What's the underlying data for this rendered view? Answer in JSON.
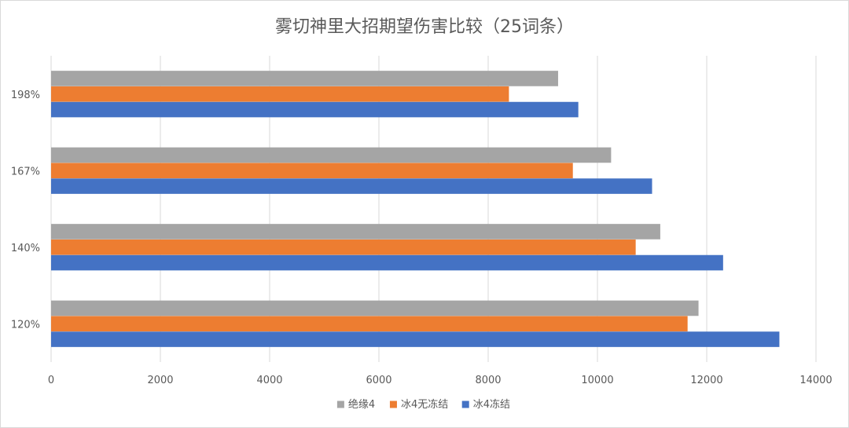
{
  "chart_data": {
    "type": "bar",
    "orientation": "horizontal",
    "title": "雾切神里大招期望伤害比较（25词条）",
    "categories": [
      "120%",
      "140%",
      "167%",
      "198%"
    ],
    "series": [
      {
        "name": "冰4冻结",
        "color": "#4472C4",
        "values": [
          13330,
          12300,
          11000,
          9650
        ]
      },
      {
        "name": "冰4无冻结",
        "color": "#ED7D31",
        "values": [
          11650,
          10700,
          9550,
          8380
        ]
      },
      {
        "name": "绝缘4",
        "color": "#A5A5A5",
        "values": [
          11850,
          11150,
          10250,
          9280
        ]
      }
    ],
    "x_ticks": [
      "0",
      "2000",
      "4000",
      "6000",
      "8000",
      "10000",
      "12000",
      "14000"
    ],
    "xlim": [
      0,
      14000
    ],
    "grid": "vertical",
    "legend": {
      "position": "bottom",
      "order": [
        "绝缘4",
        "冰4无冻结",
        "冰4冻结"
      ]
    }
  }
}
